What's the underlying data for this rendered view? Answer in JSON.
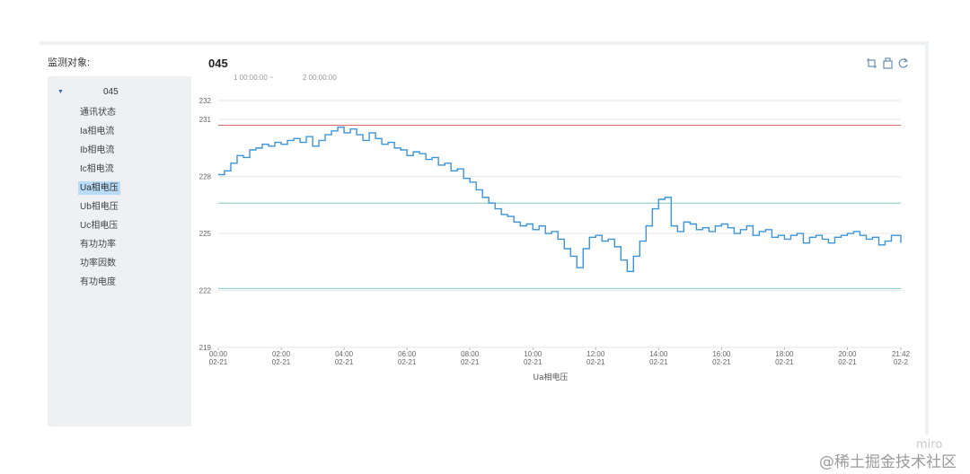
{
  "panel": {
    "target_label": "监测对象:",
    "chart_title": "045",
    "time_start": "1 00:00:00 ~",
    "time_end": "2 00:00:00",
    "tools": [
      "crop-icon",
      "restore-icon",
      "refresh-icon"
    ]
  },
  "tree": {
    "root": "045",
    "items": [
      "通讯状态",
      "Ia相电流",
      "Ib相电流",
      "Ic相电流",
      "Ua相电压",
      "Ub相电压",
      "Uc相电压",
      "有功功率",
      "功率因数",
      "有功电度"
    ],
    "selected_index": 4
  },
  "watermark": "@稀土掘金技术社区",
  "miro": "miro",
  "chart_data": {
    "type": "line",
    "xlabel": "Ua相电压",
    "ylim": [
      219,
      232
    ],
    "y_ticks": [
      219,
      222,
      225,
      228,
      231,
      232
    ],
    "x_range_hours": [
      0,
      21.7
    ],
    "x_ticks": [
      {
        "h": 0,
        "time": "00:00",
        "date": "02-21"
      },
      {
        "h": 2,
        "time": "02:00",
        "date": "02-21"
      },
      {
        "h": 4,
        "time": "04:00",
        "date": "02-21"
      },
      {
        "h": 6,
        "time": "06:00",
        "date": "02-21"
      },
      {
        "h": 8,
        "time": "08:00",
        "date": "02-21"
      },
      {
        "h": 10,
        "time": "10:00",
        "date": "02-21"
      },
      {
        "h": 12,
        "time": "12:00",
        "date": "02-21"
      },
      {
        "h": 14,
        "time": "14:00",
        "date": "02-21"
      },
      {
        "h": 16,
        "time": "16:00",
        "date": "02-21"
      },
      {
        "h": 18,
        "time": "18:00",
        "date": "02-21"
      },
      {
        "h": 20,
        "time": "20:00",
        "date": "02-21"
      },
      {
        "h": 21.7,
        "time": "21:42",
        "date": "02-2"
      }
    ],
    "thresholds": [
      {
        "value": 230.7,
        "color": "#e06a6a"
      },
      {
        "value": 226.6,
        "color": "#7fc7c0"
      },
      {
        "value": 222.1,
        "color": "#7fc7c0"
      }
    ],
    "series_color": "#3d95d8",
    "series": [
      {
        "x": [
          0.0,
          0.2,
          0.4,
          0.6,
          0.8,
          1.0,
          1.2,
          1.4,
          1.6,
          1.8,
          2.0,
          2.2,
          2.4,
          2.6,
          2.8,
          3.0,
          3.2,
          3.4,
          3.6,
          3.8,
          4.0,
          4.2,
          4.4,
          4.6,
          4.8,
          5.0,
          5.2,
          5.4,
          5.6,
          5.8,
          6.0,
          6.2,
          6.4,
          6.6,
          6.8,
          7.0,
          7.2,
          7.4,
          7.6,
          7.8,
          8.0,
          8.2,
          8.4,
          8.6,
          8.8,
          9.0,
          9.2,
          9.4,
          9.6,
          9.8,
          10.0,
          10.2,
          10.4,
          10.6,
          10.8,
          11.0,
          11.2,
          11.4,
          11.6,
          11.8,
          12.0,
          12.2,
          12.4,
          12.6,
          12.8,
          13.0,
          13.2,
          13.4,
          13.6,
          13.8,
          14.0,
          14.2,
          14.4,
          14.6,
          14.8,
          15.0,
          15.2,
          15.4,
          15.6,
          15.8,
          16.0,
          16.2,
          16.4,
          16.6,
          16.8,
          17.0,
          17.2,
          17.4,
          17.6,
          17.8,
          18.0,
          18.2,
          18.4,
          18.6,
          18.8,
          19.0,
          19.2,
          19.4,
          19.6,
          19.8,
          20.0,
          20.2,
          20.4,
          20.6,
          20.8,
          21.0,
          21.2,
          21.4,
          21.7
        ],
        "y": [
          228.1,
          228.3,
          228.7,
          229.1,
          229.0,
          229.4,
          229.5,
          229.7,
          229.6,
          229.8,
          229.7,
          229.9,
          230.0,
          229.8,
          230.1,
          229.6,
          229.9,
          230.2,
          230.4,
          230.6,
          230.3,
          230.5,
          230.2,
          229.9,
          230.3,
          230.0,
          229.7,
          229.8,
          229.5,
          229.4,
          229.1,
          229.3,
          229.2,
          228.9,
          229.0,
          228.6,
          228.7,
          228.3,
          228.4,
          227.9,
          227.7,
          227.3,
          226.9,
          226.6,
          226.3,
          226.0,
          225.9,
          225.6,
          225.4,
          225.5,
          225.2,
          225.4,
          225.0,
          225.1,
          224.7,
          224.2,
          223.8,
          223.2,
          224.2,
          224.8,
          224.9,
          224.6,
          224.7,
          224.3,
          223.6,
          223.0,
          223.8,
          224.6,
          225.4,
          226.3,
          226.8,
          226.9,
          225.4,
          225.1,
          225.6,
          225.5,
          225.2,
          225.3,
          225.1,
          225.4,
          225.5,
          225.3,
          225.0,
          225.2,
          225.4,
          224.9,
          225.1,
          225.2,
          224.8,
          224.9,
          224.7,
          224.9,
          225.0,
          224.5,
          224.8,
          224.9,
          224.7,
          224.5,
          224.8,
          224.9,
          225.0,
          225.1,
          224.9,
          224.7,
          224.8,
          224.4,
          224.6,
          224.9,
          224.5
        ]
      }
    ]
  }
}
